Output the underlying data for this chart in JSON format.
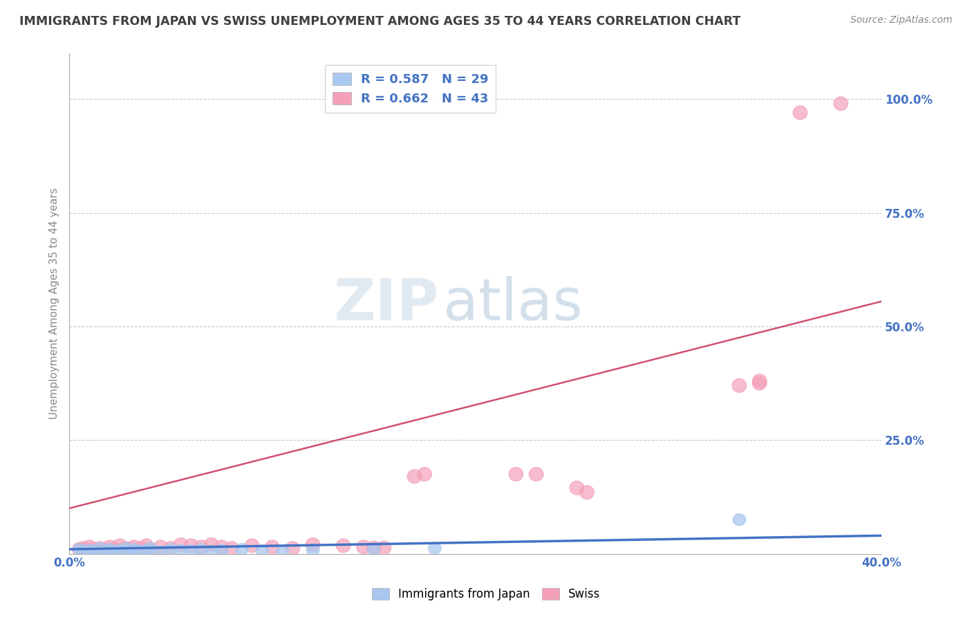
{
  "title": "IMMIGRANTS FROM JAPAN VS SWISS UNEMPLOYMENT AMONG AGES 35 TO 44 YEARS CORRELATION CHART",
  "source": "Source: ZipAtlas.com",
  "ylabel": "Unemployment Among Ages 35 to 44 years",
  "xlim": [
    0.0,
    0.4
  ],
  "ylim": [
    0.0,
    1.1
  ],
  "yticks": [
    0.25,
    0.5,
    0.75,
    1.0
  ],
  "ytick_labels": [
    "25.0%",
    "50.0%",
    "75.0%",
    "100.0%"
  ],
  "xtick_labels": [
    "0.0%",
    "40.0%"
  ],
  "legend_entries": [
    {
      "label": "R = 0.587   N = 29",
      "color": "#a8c8f0"
    },
    {
      "label": "R = 0.662   N = 43",
      "color": "#f4a0b8"
    }
  ],
  "series1_color": "#a8c8f0",
  "series2_color": "#f4a0b8",
  "trendline1_color": "#4472c4",
  "trendline2_color": "#d05070",
  "background_color": "#ffffff",
  "grid_color": "#c8c8c8",
  "title_color": "#404040",
  "axis_label_color": "#4472c4",
  "watermark_zip_color": "#c8d8e8",
  "watermark_atlas_color": "#a8c0d8",
  "series1_points": [
    [
      0.005,
      0.01
    ],
    [
      0.007,
      0.005
    ],
    [
      0.01,
      0.008
    ],
    [
      0.012,
      0.006
    ],
    [
      0.015,
      0.012
    ],
    [
      0.018,
      0.007
    ],
    [
      0.02,
      0.01
    ],
    [
      0.022,
      0.005
    ],
    [
      0.025,
      0.008
    ],
    [
      0.028,
      0.012
    ],
    [
      0.03,
      0.007
    ],
    [
      0.032,
      0.01
    ],
    [
      0.035,
      0.006
    ],
    [
      0.038,
      0.008
    ],
    [
      0.04,
      0.012
    ],
    [
      0.045,
      0.005
    ],
    [
      0.05,
      0.01
    ],
    [
      0.055,
      0.008
    ],
    [
      0.06,
      0.007
    ],
    [
      0.065,
      0.01
    ],
    [
      0.07,
      0.006
    ],
    [
      0.075,
      0.008
    ],
    [
      0.085,
      0.01
    ],
    [
      0.095,
      0.007
    ],
    [
      0.105,
      0.005
    ],
    [
      0.12,
      0.008
    ],
    [
      0.15,
      0.01
    ],
    [
      0.18,
      0.012
    ],
    [
      0.33,
      0.075
    ]
  ],
  "series2_points": [
    [
      0.005,
      0.01
    ],
    [
      0.007,
      0.012
    ],
    [
      0.008,
      0.008
    ],
    [
      0.01,
      0.015
    ],
    [
      0.012,
      0.01
    ],
    [
      0.015,
      0.012
    ],
    [
      0.018,
      0.008
    ],
    [
      0.02,
      0.015
    ],
    [
      0.022,
      0.01
    ],
    [
      0.025,
      0.018
    ],
    [
      0.028,
      0.012
    ],
    [
      0.03,
      0.01
    ],
    [
      0.032,
      0.015
    ],
    [
      0.035,
      0.012
    ],
    [
      0.038,
      0.018
    ],
    [
      0.04,
      0.01
    ],
    [
      0.045,
      0.015
    ],
    [
      0.05,
      0.012
    ],
    [
      0.055,
      0.02
    ],
    [
      0.06,
      0.018
    ],
    [
      0.065,
      0.015
    ],
    [
      0.07,
      0.02
    ],
    [
      0.075,
      0.015
    ],
    [
      0.08,
      0.012
    ],
    [
      0.09,
      0.018
    ],
    [
      0.1,
      0.015
    ],
    [
      0.11,
      0.012
    ],
    [
      0.12,
      0.02
    ],
    [
      0.135,
      0.018
    ],
    [
      0.145,
      0.015
    ],
    [
      0.15,
      0.013
    ],
    [
      0.155,
      0.013
    ],
    [
      0.17,
      0.17
    ],
    [
      0.175,
      0.175
    ],
    [
      0.22,
      0.175
    ],
    [
      0.23,
      0.175
    ],
    [
      0.25,
      0.145
    ],
    [
      0.255,
      0.135
    ],
    [
      0.33,
      0.37
    ],
    [
      0.34,
      0.38
    ],
    [
      0.36,
      0.97
    ],
    [
      0.38,
      0.99
    ],
    [
      0.34,
      0.375
    ]
  ],
  "trendline1_x0": 0.0,
  "trendline1_y0": 0.01,
  "trendline1_x1": 0.4,
  "trendline1_y1": 0.04,
  "trendline2_x0": 0.0,
  "trendline2_y0": 0.1,
  "trendline2_x1": 0.4,
  "trendline2_y1": 0.555
}
